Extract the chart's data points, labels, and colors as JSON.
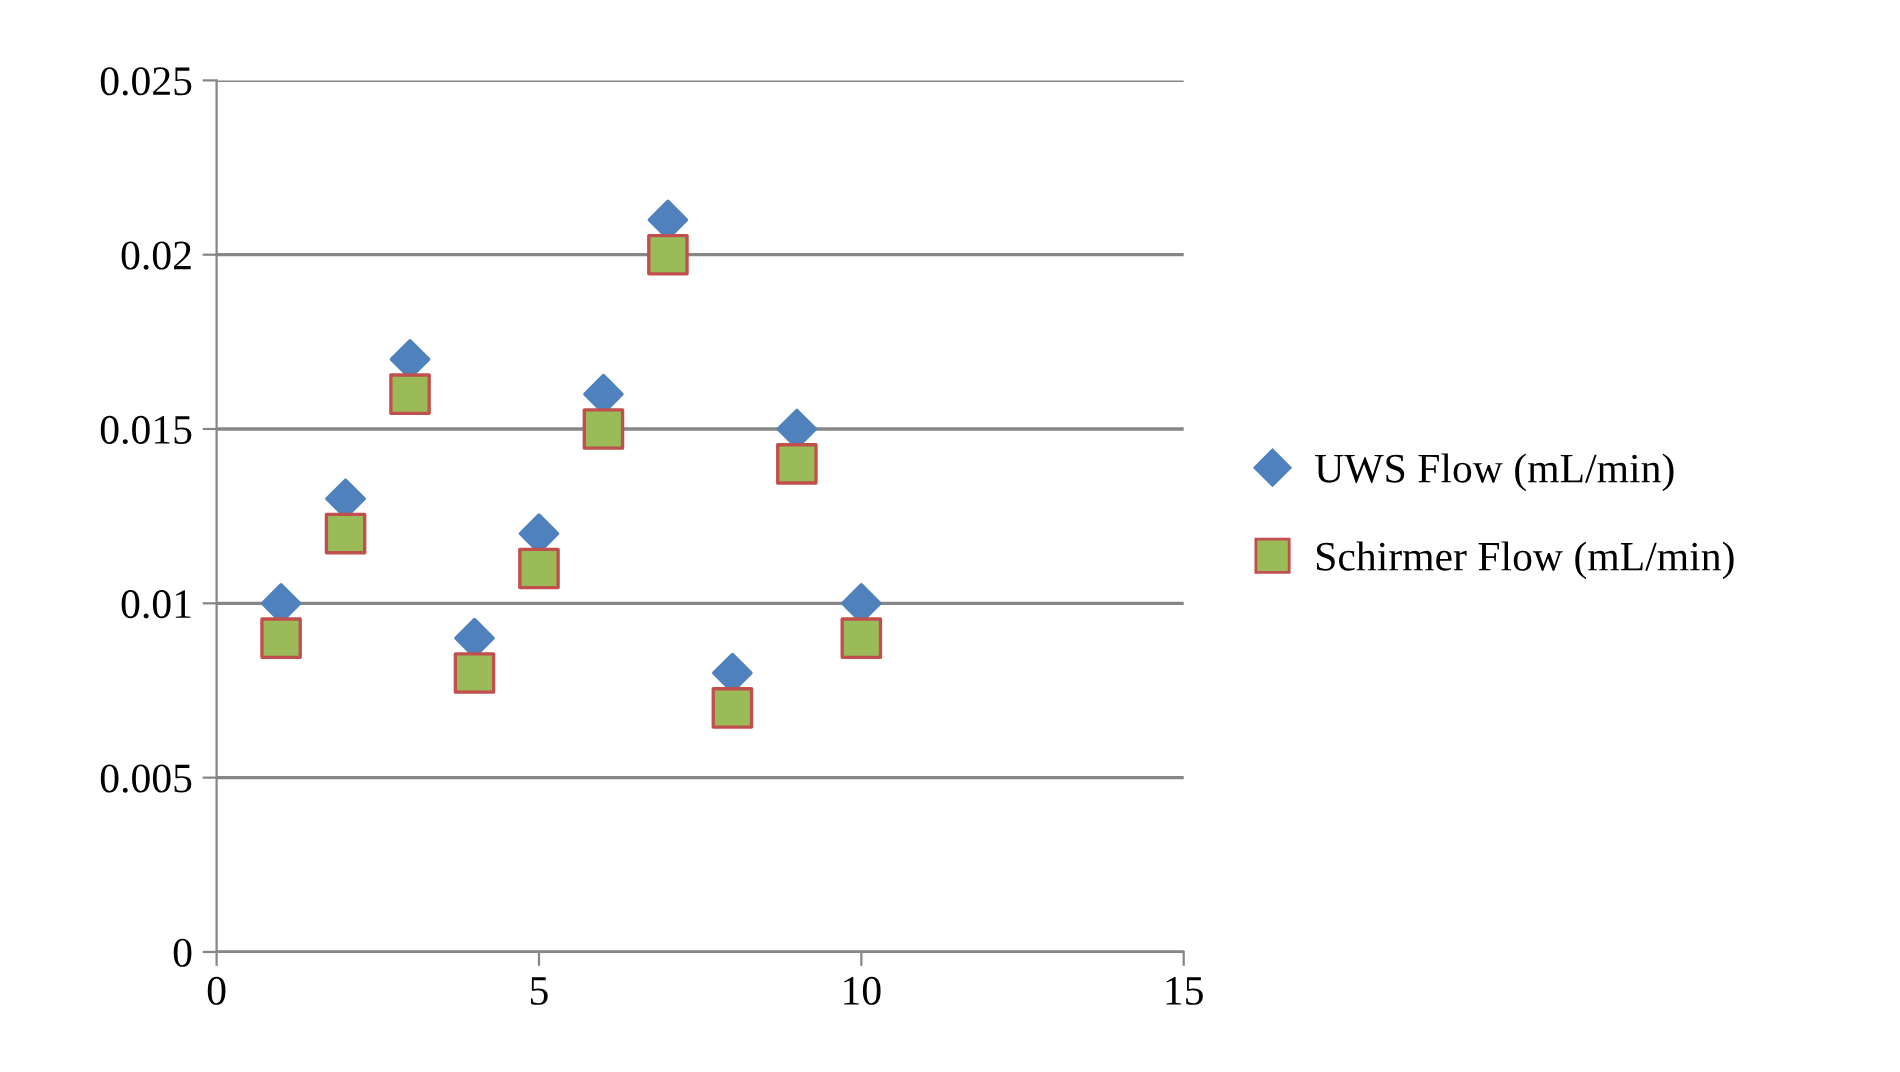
{
  "chart_data": {
    "type": "scatter",
    "xlim": [
      0,
      15
    ],
    "xticks": [
      0,
      5,
      10,
      15
    ],
    "ylim": [
      0,
      0.025
    ],
    "yticks": [
      0,
      0.005,
      0.01,
      0.015,
      0.02,
      0.025
    ],
    "grid": "y",
    "legend": "right",
    "series": [
      {
        "name": "UWS Flow (mL/min)",
        "color": "#4f81bd",
        "marker": "diamond",
        "x": [
          1,
          2,
          3,
          4,
          5,
          6,
          7,
          8,
          9,
          10
        ],
        "values": [
          0.01,
          0.013,
          0.017,
          0.009,
          0.012,
          0.016,
          0.021,
          0.008,
          0.015,
          0.01
        ]
      },
      {
        "name": "Schirmer Flow (mL/min)",
        "color": "#9bbb59",
        "marker": "square",
        "x": [
          1,
          2,
          3,
          4,
          5,
          6,
          7,
          8,
          9,
          10
        ],
        "values": [
          0.009,
          0.012,
          0.016,
          0.008,
          0.011,
          0.015,
          0.02,
          0.007,
          0.014,
          0.009
        ]
      }
    ]
  }
}
